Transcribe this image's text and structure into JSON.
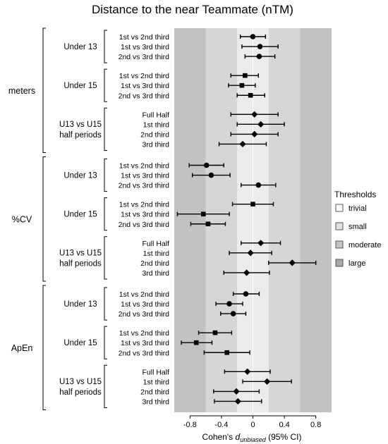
{
  "chart_data": {
    "type": "forest",
    "title": "Distance to the near Teammate (nTM)",
    "xlabel_prefix": "Cohen's ",
    "xlabel_italic": "d",
    "xlabel_sub": "unbiased",
    "xlabel_suffix": " (95% CI)",
    "xlim": [
      -1.0,
      1.0
    ],
    "xticks": [
      "-0.8",
      "-0.4",
      "0",
      "0.4",
      "0.8"
    ],
    "thresholds": {
      "title": "Thresholds",
      "levels": [
        {
          "name": "trivial",
          "color": "#ffffff",
          "band_color": "#ebebeb",
          "ranges": [
            [
              -0.2,
              0.2
            ]
          ]
        },
        {
          "name": "small",
          "color": "#e0e0e0",
          "band_color": "#d6d6d6",
          "ranges": [
            [
              -0.6,
              -0.2
            ],
            [
              0.2,
              0.6
            ]
          ]
        },
        {
          "name": "moderate",
          "color": "#c4c4c4",
          "band_color": "#c2c2c2",
          "ranges": [
            [
              -1.2,
              -0.6
            ],
            [
              0.6,
              1.2
            ]
          ]
        },
        {
          "name": "large",
          "color": "#a8a8a8",
          "band_color": "#a8a8a8",
          "ranges": [
            [
              -2.0,
              -1.2
            ],
            [
              1.2,
              2.0
            ]
          ]
        }
      ]
    },
    "sections": [
      {
        "unit": "meters",
        "groups": [
          {
            "label": [
              "Under 13"
            ],
            "rows": [
              {
                "label": "1st vs 2nd third",
                "marker": "circle",
                "est": 0.0,
                "lo": -0.16,
                "hi": 0.16
              },
              {
                "label": "1st vs 3rd third",
                "marker": "circle",
                "est": 0.09,
                "lo": -0.14,
                "hi": 0.32
              },
              {
                "label": "2nd vs 3rd third",
                "marker": "circle",
                "est": 0.08,
                "lo": -0.1,
                "hi": 0.28
              }
            ]
          },
          {
            "label": [
              "Under 15"
            ],
            "rows": [
              {
                "label": "1st vs 2nd third",
                "marker": "square",
                "est": -0.1,
                "lo": -0.28,
                "hi": 0.07
              },
              {
                "label": "1st vs 3rd third",
                "marker": "square",
                "est": -0.14,
                "lo": -0.31,
                "hi": 0.03
              },
              {
                "label": "2nd vs 3rd third",
                "marker": "square",
                "est": -0.03,
                "lo": -0.2,
                "hi": 0.15
              }
            ]
          },
          {
            "label": [
              "U13 vs U15",
              "half periods"
            ],
            "rows": [
              {
                "label": "Full Half",
                "marker": "diamond",
                "est": 0.02,
                "lo": -0.28,
                "hi": 0.32
              },
              {
                "label": "1st third",
                "marker": "diamond",
                "est": 0.1,
                "lo": -0.2,
                "hi": 0.4
              },
              {
                "label": "2nd third",
                "marker": "diamond",
                "est": 0.02,
                "lo": -0.28,
                "hi": 0.32
              },
              {
                "label": "3rd third",
                "marker": "diamond",
                "est": -0.13,
                "lo": -0.43,
                "hi": 0.17
              }
            ]
          }
        ]
      },
      {
        "unit": "%CV",
        "groups": [
          {
            "label": [
              "Under 13"
            ],
            "rows": [
              {
                "label": "1st vs 2nd third",
                "marker": "circle",
                "est": -0.59,
                "lo": -0.81,
                "hi": -0.37
              },
              {
                "label": "1st vs 3rd third",
                "marker": "circle",
                "est": -0.53,
                "lo": -0.77,
                "hi": -0.29
              },
              {
                "label": "2nd vs 3rd third",
                "marker": "circle",
                "est": 0.07,
                "lo": -0.15,
                "hi": 0.29
              }
            ]
          },
          {
            "label": [
              "Under 15"
            ],
            "rows": [
              {
                "label": "1st vs 2nd third",
                "marker": "square",
                "est": 0.0,
                "lo": -0.26,
                "hi": 0.26
              },
              {
                "label": "1st vs 3rd third",
                "marker": "square",
                "est": -0.63,
                "lo": -0.96,
                "hi": -0.3
              },
              {
                "label": "2nd vs 3rd third",
                "marker": "square",
                "est": -0.57,
                "lo": -0.79,
                "hi": -0.35
              }
            ]
          },
          {
            "label": [
              "U13 vs U15",
              "half periods"
            ],
            "rows": [
              {
                "label": "Full Half",
                "marker": "diamond",
                "est": 0.1,
                "lo": -0.15,
                "hi": 0.35
              },
              {
                "label": "1st third",
                "marker": "diamond",
                "est": -0.03,
                "lo": -0.3,
                "hi": 0.24
              },
              {
                "label": "2nd third",
                "marker": "diamond",
                "est": 0.5,
                "lo": 0.2,
                "hi": 0.8
              },
              {
                "label": "3rd third",
                "marker": "diamond",
                "est": -0.08,
                "lo": -0.37,
                "hi": 0.21
              }
            ]
          }
        ]
      },
      {
        "unit": "ApEn",
        "groups": [
          {
            "label": [
              "Under 13"
            ],
            "rows": [
              {
                "label": "1st vs 2nd third",
                "marker": "circle",
                "est": -0.09,
                "lo": -0.25,
                "hi": 0.08
              },
              {
                "label": "1st vs 3rd third",
                "marker": "circle",
                "est": -0.3,
                "lo": -0.47,
                "hi": -0.13
              },
              {
                "label": "2nd vs 3rd third",
                "marker": "circle",
                "est": -0.25,
                "lo": -0.41,
                "hi": -0.09
              }
            ]
          },
          {
            "label": [
              "Under 15"
            ],
            "rows": [
              {
                "label": "1st vs 2nd third",
                "marker": "square",
                "est": -0.48,
                "lo": -0.69,
                "hi": -0.27
              },
              {
                "label": "1st vs 3rd third",
                "marker": "square",
                "est": -0.72,
                "lo": -0.91,
                "hi": -0.52
              },
              {
                "label": "2nd vs 3rd third",
                "marker": "square",
                "est": -0.33,
                "lo": -0.62,
                "hi": -0.04
              }
            ]
          },
          {
            "label": [
              "U13 vs U15",
              "half periods"
            ],
            "rows": [
              {
                "label": "Full Half",
                "marker": "diamond",
                "est": -0.07,
                "lo": -0.36,
                "hi": 0.22
              },
              {
                "label": "1st third",
                "marker": "diamond",
                "est": 0.18,
                "lo": -0.13,
                "hi": 0.49
              },
              {
                "label": "2nd third",
                "marker": "diamond",
                "est": -0.21,
                "lo": -0.5,
                "hi": 0.08
              },
              {
                "label": "3rd third",
                "marker": "diamond",
                "est": -0.19,
                "lo": -0.49,
                "hi": 0.11
              }
            ]
          }
        ]
      }
    ]
  }
}
